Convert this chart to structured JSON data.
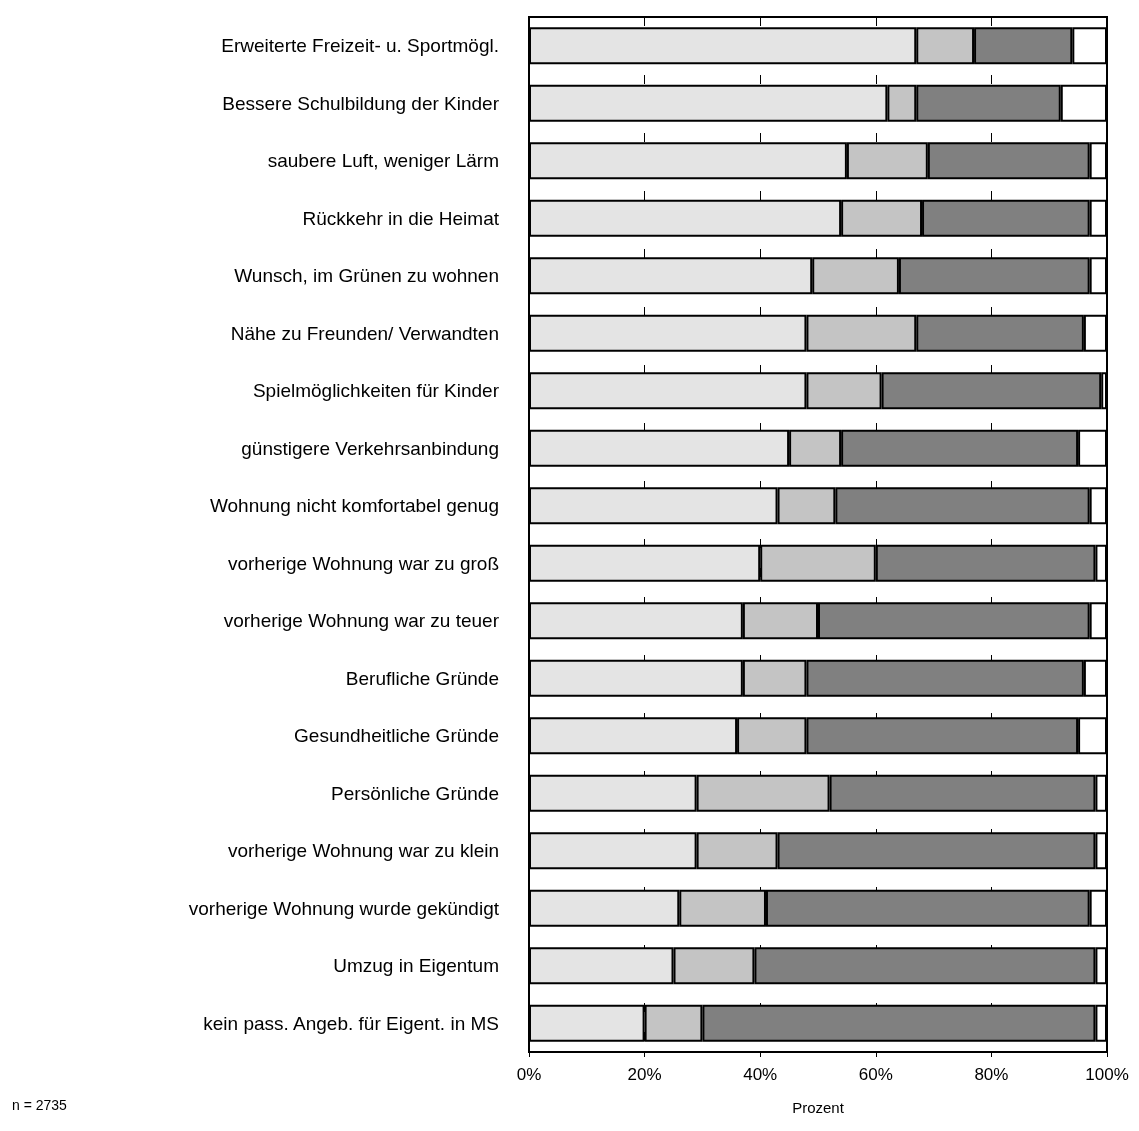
{
  "chart_data": {
    "type": "bar",
    "orientation": "horizontal",
    "stacked": true,
    "xlabel": "Prozent",
    "categories": [
      "Erweiterte Freizeit- u. Sportmögl.",
      "Bessere Schulbildung der Kinder",
      "saubere Luft, weniger Lärm",
      "Rückkehr in die Heimat",
      "Wunsch, im Grünen zu wohnen",
      "Nähe zu Freunden/ Verwandten",
      "Spielmöglichkeiten für Kinder",
      "günstigere Verkehrsanbindung",
      "Wohnung nicht komfortabel genug",
      "vorherige Wohnung war zu groß",
      "vorherige Wohnung war zu teuer",
      "Berufliche Gründe",
      "Gesundheitliche Gründe",
      "Persönliche Gründe",
      "vorherige Wohnung war zu klein",
      "vorherige Wohnung wurde gekündigt",
      "Umzug in Eigentum",
      "kein pass. Angeb. für Eigent. in MS"
    ],
    "series": [
      {
        "color": "#e4e4e4",
        "values": [
          67,
          62,
          55,
          54,
          49,
          48,
          48,
          45,
          43,
          40,
          37,
          37,
          36,
          29,
          29,
          26,
          25,
          20
        ]
      },
      {
        "color": "#c4c4c4",
        "values": [
          10,
          5,
          14,
          14,
          15,
          19,
          13,
          9,
          10,
          20,
          13,
          11,
          12,
          23,
          14,
          15,
          14,
          10
        ]
      },
      {
        "color": "#808080",
        "values": [
          17,
          25,
          28,
          29,
          33,
          29,
          38,
          41,
          44,
          38,
          47,
          48,
          47,
          46,
          55,
          56,
          59,
          68
        ]
      },
      {
        "color": "#ffffff",
        "values": [
          6,
          8,
          3,
          3,
          3,
          4,
          1,
          5,
          3,
          2,
          3,
          4,
          5,
          2,
          2,
          3,
          2,
          2
        ]
      }
    ],
    "xlim": [
      0,
      100
    ],
    "xticks": [
      {
        "value": 0,
        "label": "0%"
      },
      {
        "value": 20,
        "label": "20%"
      },
      {
        "value": 40,
        "label": "40%"
      },
      {
        "value": 60,
        "label": "60%"
      },
      {
        "value": 80,
        "label": "80%"
      },
      {
        "value": 100,
        "label": "100%"
      }
    ],
    "grid": "x",
    "annotations": [
      "n = 2735"
    ]
  }
}
